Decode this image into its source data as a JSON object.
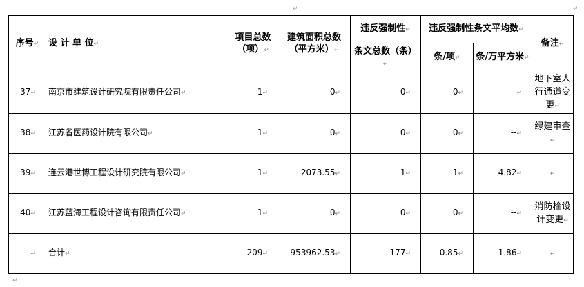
{
  "header": {
    "seq": "序号",
    "unit": "设 计 单 位",
    "projects": "项目总数（项）",
    "area": "建筑面积总数（平方米）",
    "violation": "违反强制性",
    "violation_total": "条文总数（条）",
    "avg": "违反强制性条文平均数",
    "per_project": "条/项",
    "per_area": "条/万平方米",
    "remark": "备注"
  },
  "rows": [
    {
      "seq": "37",
      "unit": "南京市建筑设计研究院有限责任公司",
      "projects": "1",
      "area": "0",
      "violations": "0",
      "per_project": "0",
      "per_area": "--",
      "remark": "地下室人行通道变更"
    },
    {
      "seq": "38",
      "unit": "江苏省医药设计院有限公司",
      "projects": "1",
      "area": "0",
      "violations": "0",
      "per_project": "0",
      "per_area": "--",
      "remark": "绿建审查"
    },
    {
      "seq": "39",
      "unit": "连云港世博工程设计研究院有限公司",
      "projects": "1",
      "area": "2073.55",
      "violations": "1",
      "per_project": "1",
      "per_area": "4.82",
      "remark": ""
    },
    {
      "seq": "40",
      "unit": "江苏蓝海工程设计咨询有限责任公司",
      "projects": "1",
      "area": "0",
      "violations": "0",
      "per_project": "0",
      "per_area": "--",
      "remark": "消防栓设计变更"
    }
  ],
  "total": {
    "seq": "",
    "unit": "合计",
    "projects": "209",
    "area": "953962.53",
    "violations": "177",
    "per_project": "0.85",
    "per_area": "1.86",
    "remark": ""
  }
}
